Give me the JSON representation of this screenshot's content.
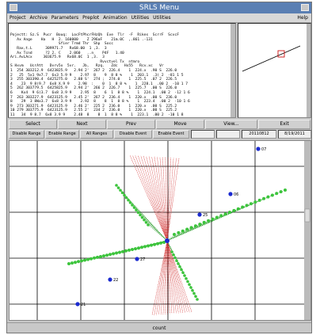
{
  "window": {
    "title": "SRLS Menu"
  },
  "menu": {
    "items": [
      "Project",
      "Archive",
      "Parameters",
      "Preplot",
      "Animation",
      "Utilities",
      "Utilities"
    ],
    "help": "Help"
  },
  "text_panel": {
    "lines": [
      "Pojectt: Sz.S  Pucr  Bouq:  LocFtPhcrFHzQh  Eve  Tlr  -F  Rikes  ScrrF  ScvcF",
      "   Ax Ange    Ha   H  2. 160000    Z 296aF    21m.0C  ,.861 .-131",
      "                      Sfier Trmd Thr  Shp  Socc",
      "   Rax,t.L      309971.7   Rx68.00  1 ,3.  3",
      "   Ax Tcnd      ?2 2. C    2.060   ..n    P4F   1.40",
      "Ari.AvLAcx     303675.9   Rx68.0C  1 ,3.  3",
      "                                         Rvvctvel Tx  ntmro",
      "S Hxvm   UcrAtt   Dvrv5x  5vr.   Jb,   Rzq.   Zdc   Hx55   Rcv.xc   Vr",
      "1  254 303212.9  6423825.9   2.94 2'  267 2  226.4    1  224.x  .90 S  226.0",
      "2   25  5x1 9x7.7  6x3 5.9 9    2.97  8    9  8 8 %    1  203.1  .3( 2  -81 1 5",
      "3  255 303390.4  6425275.0   2.88 S'  274 ;  274.0    1  225.5  .07 2  226.5",
      "4    23  9 8(9.7  6x8 X.9 9    2.98  :    0  1  8 8 %    1  228.1  .00 2  -10 1 7",
      "5  262 303779.5  6425825.9   2.94 2'  266 2  226.7    1  225.7  .00 S  226.0",
      "6    Kx4  9 6(3.7  6x8 3.9 9    2.95  8    6  1  8 8 %    1  224.1  .00 2  -12 1 6",
      "7  263 303227.9  6423125.9   2.45 2'  267 2  236.4    1  220.x  .00 S  236.0",
      "8    29  3 8Wx3.7  6x8 3.9 9    2.92  8    8  1  8 8 %    1  223.4  .00 2  -10 1 6",
      "9  273 303271.9  6423125.9   2.46 2'  225 2  236.0    1  220.x  .00 S  225.2",
      "10 279 303775.9  6423125.9   2.55 2'  234 2  236.0    1  220.x  .00 S  225.2",
      "11   34  9 8.7  6x8 3.9 9    2.48  8    8  1  8 8 %    1  223.1  .00 2  -10 1 8"
    ]
  },
  "buttons_row1": [
    "Select",
    "Next",
    "Prev",
    "Move",
    "View...",
    "Exit"
  ],
  "buttons_row2": [
    "Disable Range",
    "Enable Range",
    "All Ranges",
    "Disable Event",
    "Enable Event"
  ],
  "fields": {
    "empty": "",
    "date1": "20110812",
    "date2": "8/19/2011"
  },
  "plot": {
    "labels": [
      "07",
      "06",
      "25",
      "27",
      "22",
      "21"
    ]
  },
  "status": {
    "text": "count"
  },
  "colors": {
    "title_bar": "#5a7fb3",
    "green_rays": "#2a9a2a",
    "red_rays": "#cc1111",
    "station": "#1a2ad0"
  }
}
